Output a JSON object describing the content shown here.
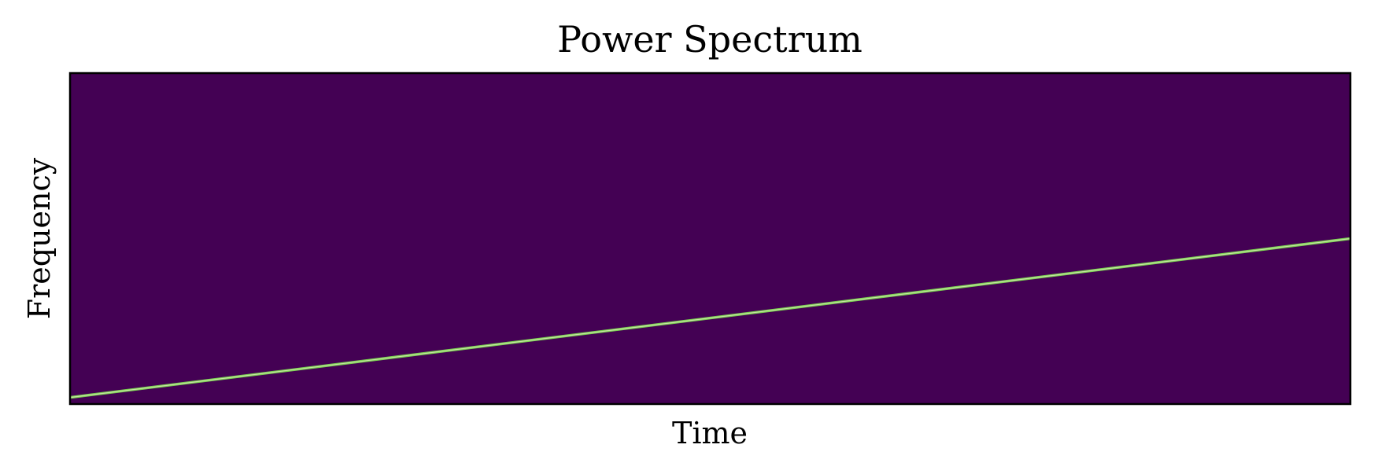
{
  "chart_data": {
    "type": "heatmap",
    "title": "Power Spectrum",
    "xlabel": "Time",
    "ylabel": "Frequency",
    "xticks": [],
    "yticks": [],
    "xlim": [
      0,
      1
    ],
    "ylim": [
      0,
      1
    ],
    "colormap": "viridis",
    "grid": false,
    "legend": "none",
    "background_color": "#440154",
    "ridge_color": "#7ad151",
    "ridge_core_color": "#c8e4a4",
    "frame_color": "#000000",
    "ridge": {
      "x": [
        0.0,
        1.0
      ],
      "y": [
        0.02,
        0.5
      ]
    }
  }
}
